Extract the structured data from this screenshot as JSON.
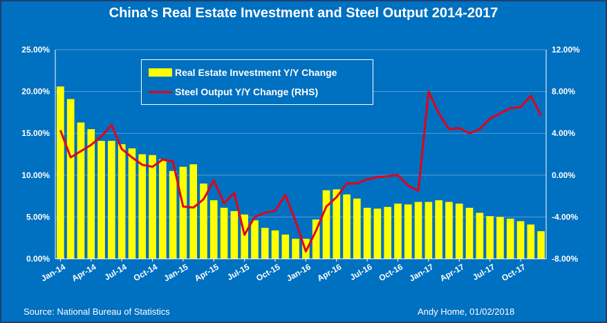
{
  "colors": {
    "background": "#0070c0",
    "bar": "#ffff00",
    "line": "#e2001a",
    "text": "#ffffff",
    "grid": "#5b9bd5"
  },
  "chart_data": {
    "type": "bar",
    "title": "China's Real Estate Investment and Steel Output 2014-2017",
    "x_tick_labels": [
      "Jan-14",
      "Apr-14",
      "Jul-14",
      "Oct-14",
      "Jan-15",
      "Apr-15",
      "Jul-15",
      "Oct-15",
      "Jan-16",
      "Apr-16",
      "Jul-16",
      "Oct-16",
      "Jan-17",
      "Apr-17",
      "Jul-17",
      "Oct-17"
    ],
    "y_left_ticks": [
      "0.00%",
      "5.00%",
      "10.00%",
      "15.00%",
      "20.00%",
      "25.00%"
    ],
    "y_right_ticks": [
      "-8.00%",
      "-4.00%",
      "0.00%",
      "4.00%",
      "8.00%",
      "12.00%"
    ],
    "y_left_lim": [
      0,
      25
    ],
    "y_right_lim": [
      -8,
      12
    ],
    "x": [
      "Jan-14",
      "Feb-14",
      "Mar-14",
      "Apr-14",
      "May-14",
      "Jun-14",
      "Jul-14",
      "Aug-14",
      "Sep-14",
      "Oct-14",
      "Nov-14",
      "Dec-14",
      "Jan-15",
      "Feb-15",
      "Mar-15",
      "Apr-15",
      "May-15",
      "Jun-15",
      "Jul-15",
      "Aug-15",
      "Sep-15",
      "Oct-15",
      "Nov-15",
      "Dec-15",
      "Jan-16",
      "Feb-16",
      "Mar-16",
      "Apr-16",
      "May-16",
      "Jun-16",
      "Jul-16",
      "Aug-16",
      "Sep-16",
      "Oct-16",
      "Nov-16",
      "Dec-16",
      "Jan-17",
      "Feb-17",
      "Mar-17",
      "Apr-17",
      "May-17",
      "Jun-17",
      "Jul-17",
      "Aug-17",
      "Sep-17",
      "Oct-17",
      "Nov-17",
      "Dec-17"
    ],
    "grid": true,
    "legend_position": "top-left",
    "series": [
      {
        "name": "Real Estate Investment Y/Y Change",
        "type": "bar",
        "axis": "left",
        "values": [
          20.6,
          19.1,
          16.3,
          15.5,
          14.1,
          14.1,
          13.7,
          13.2,
          12.5,
          12.4,
          11.9,
          10.5,
          11.0,
          11.3,
          9.0,
          7.0,
          6.1,
          5.7,
          5.3,
          4.6,
          3.7,
          3.4,
          2.9,
          2.4,
          2.4,
          4.7,
          8.2,
          8.3,
          7.7,
          7.2,
          6.1,
          6.0,
          6.2,
          6.6,
          6.5,
          6.8,
          6.8,
          7.0,
          6.8,
          6.6,
          6.1,
          5.5,
          5.1,
          5.0,
          4.8,
          4.5,
          4.1,
          3.3
        ]
      },
      {
        "name": "Steel Output Y/Y Change (RHS)",
        "type": "line",
        "axis": "right",
        "values": [
          4.3,
          1.7,
          2.3,
          2.9,
          3.7,
          4.8,
          2.5,
          1.7,
          1.0,
          0.8,
          1.5,
          1.3,
          -3.0,
          -3.1,
          -2.3,
          -0.5,
          -2.7,
          -1.7,
          -5.7,
          -4.0,
          -3.6,
          -3.4,
          -1.9,
          -4.4,
          -7.3,
          -5.3,
          -3.0,
          -2.1,
          -0.8,
          -0.8,
          -0.4,
          -0.2,
          -0.1,
          0.0,
          -1.0,
          -1.5,
          8.0,
          5.9,
          4.4,
          4.5,
          4.0,
          4.4,
          5.4,
          5.9,
          6.4,
          6.5,
          7.6,
          5.7
        ]
      }
    ]
  },
  "footer": {
    "source": "Source: National Bureau  of Statistics",
    "author": "Andy Home, 01/02/2018"
  }
}
